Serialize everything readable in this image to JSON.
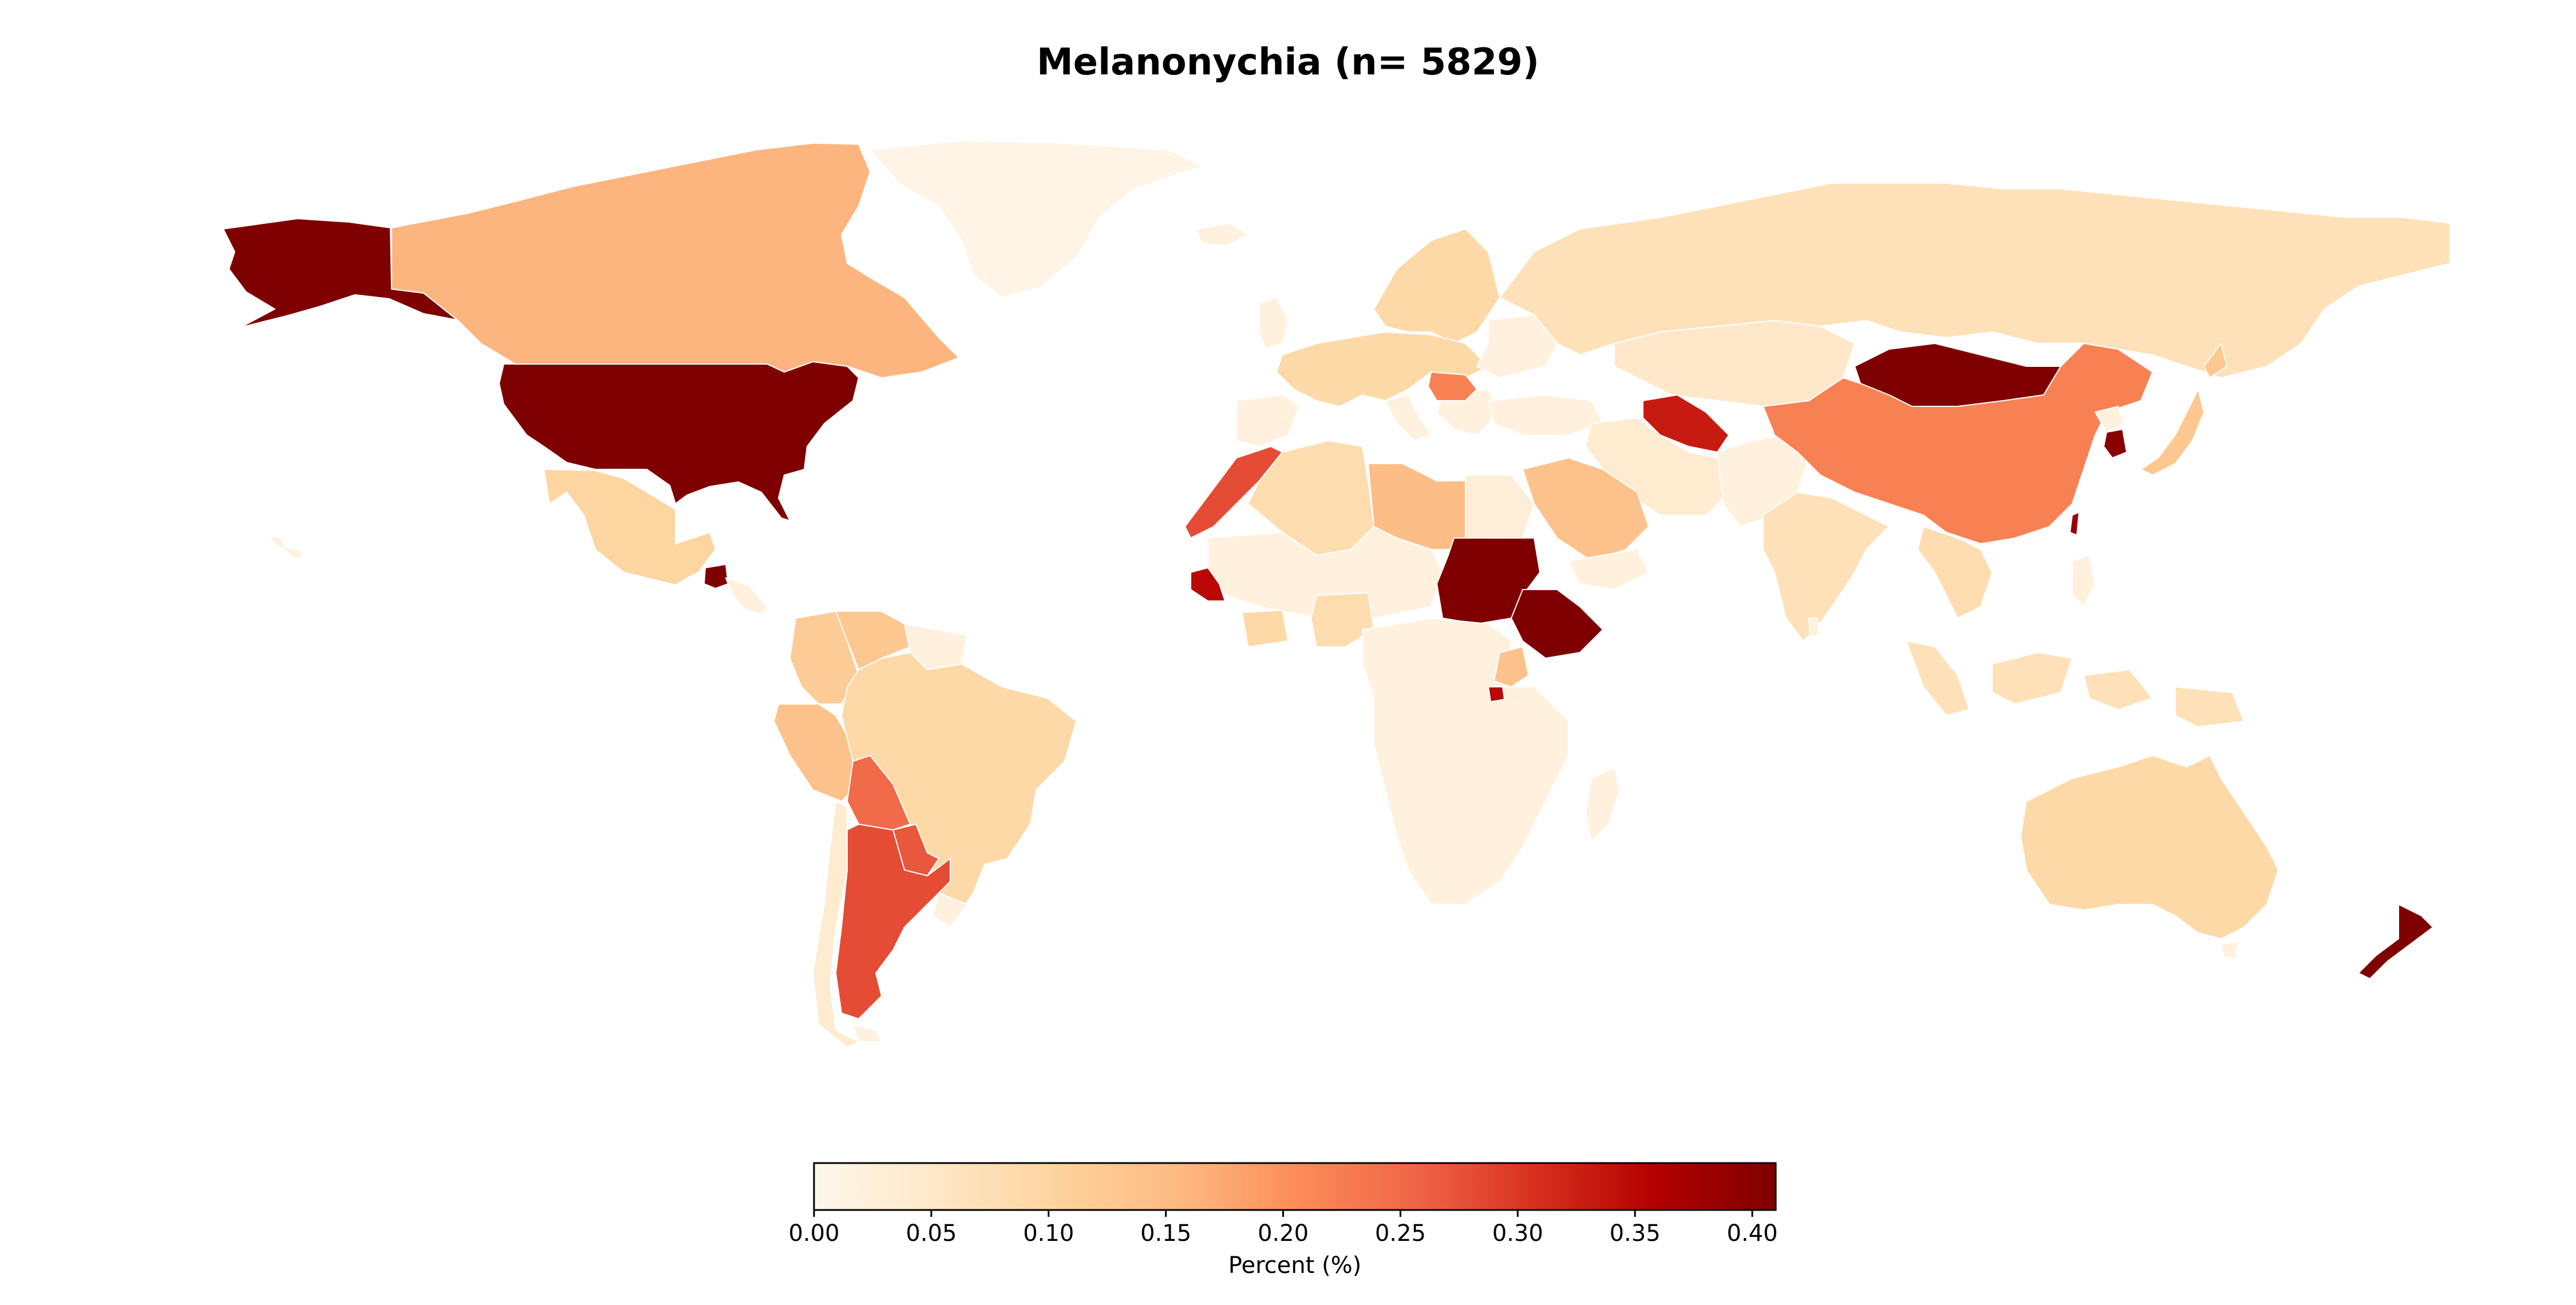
{
  "title": "Melanonychia (n= 5829)",
  "colorbar": {
    "label": "Percent (%)",
    "min": 0.0,
    "max": 0.41,
    "ticks": [
      "0.00",
      "0.05",
      "0.10",
      "0.15",
      "0.20",
      "0.25",
      "0.30",
      "0.35",
      "0.40"
    ],
    "tick_values": [
      0.0,
      0.05,
      0.1,
      0.15,
      0.2,
      0.25,
      0.3,
      0.35,
      0.4
    ],
    "colormap": "OrRd",
    "colormap_stops": [
      "#fff7ec",
      "#fee8c8",
      "#fdd49e",
      "#fdbb84",
      "#fc8d59",
      "#ef6548",
      "#d7301f",
      "#b30000",
      "#7f0000"
    ]
  },
  "chart_data": {
    "type": "choropleth",
    "value_unit": "Percent (%)",
    "regions": [
      {
        "name": "Alaska",
        "value": 0.41
      },
      {
        "name": "Canada",
        "value": 0.16
      },
      {
        "name": "Greenland",
        "value": 0.01
      },
      {
        "name": "United States",
        "value": 0.41
      },
      {
        "name": "Mexico",
        "value": 0.1
      },
      {
        "name": "Guatemala",
        "value": 0.41
      },
      {
        "name": "Colombia",
        "value": 0.12
      },
      {
        "name": "Venezuela",
        "value": 0.13
      },
      {
        "name": "Brazil",
        "value": 0.09
      },
      {
        "name": "Peru",
        "value": 0.14
      },
      {
        "name": "Bolivia",
        "value": 0.25
      },
      {
        "name": "Paraguay",
        "value": 0.27
      },
      {
        "name": "Argentina",
        "value": 0.28
      },
      {
        "name": "Chile",
        "value": 0.04
      },
      {
        "name": "Morocco",
        "value": 0.28
      },
      {
        "name": "Algeria",
        "value": 0.08
      },
      {
        "name": "Libya",
        "value": 0.15
      },
      {
        "name": "Egypt",
        "value": 0.03
      },
      {
        "name": "Senegal",
        "value": 0.35
      },
      {
        "name": "Sudan",
        "value": 0.41
      },
      {
        "name": "Ethiopia",
        "value": 0.41
      },
      {
        "name": "Uganda",
        "value": 0.35
      },
      {
        "name": "Nigeria",
        "value": 0.08
      },
      {
        "name": "Ghana",
        "value": 0.09
      },
      {
        "name": "Kenya",
        "value": 0.14
      },
      {
        "name": "Africa (other)",
        "value": 0.02
      },
      {
        "name": "Europe (west)",
        "value": 0.09
      },
      {
        "name": "Scandinavia",
        "value": 0.09
      },
      {
        "name": "Romania",
        "value": 0.22
      },
      {
        "name": "Russia",
        "value": 0.07
      },
      {
        "name": "Kazakhstan",
        "value": 0.05
      },
      {
        "name": "Saudi Arabia",
        "value": 0.14
      },
      {
        "name": "Turkmenistan",
        "value": 0.33
      },
      {
        "name": "Iran",
        "value": 0.04
      },
      {
        "name": "India",
        "value": 0.07
      },
      {
        "name": "Mongolia",
        "value": 0.41
      },
      {
        "name": "China",
        "value": 0.22
      },
      {
        "name": "South Korea",
        "value": 0.4
      },
      {
        "name": "Japan",
        "value": 0.13
      },
      {
        "name": "Taiwan",
        "value": 0.38
      },
      {
        "name": "Southeast Asia",
        "value": 0.08
      },
      {
        "name": "Indonesia",
        "value": 0.07
      },
      {
        "name": "Australia",
        "value": 0.09
      },
      {
        "name": "New Zealand",
        "value": 0.41
      }
    ]
  }
}
